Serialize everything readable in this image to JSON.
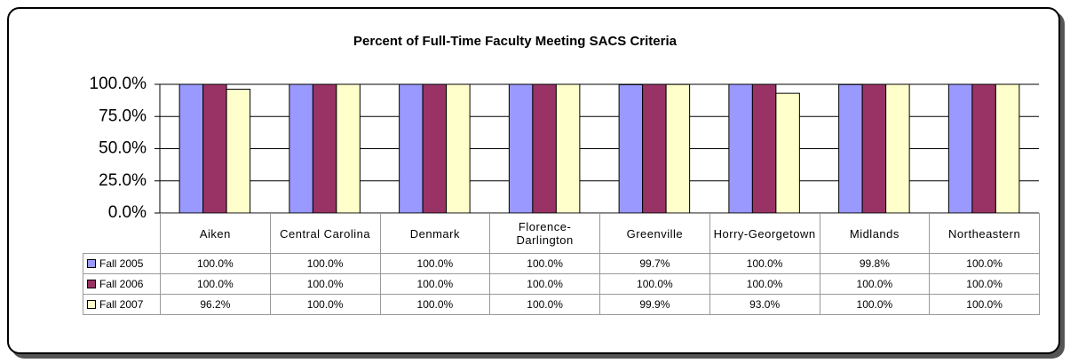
{
  "chart_data": {
    "type": "bar",
    "title": "Percent of Full-Time Faculty Meeting SACS Criteria",
    "categories": [
      "Aiken",
      "Central Carolina",
      "Denmark",
      "Florence-Darlington",
      "Greenville",
      "Horry-Georgetown",
      "Midlands",
      "Northeastern"
    ],
    "series": [
      {
        "name": "Fall 2005",
        "color": "#9999ff",
        "values": [
          100,
          100,
          100,
          100,
          99.7,
          100,
          99.8,
          100
        ],
        "value_labels": [
          "100.0%",
          "100.0%",
          "100.0%",
          "100.0%",
          "99.7%",
          "100.0%",
          "99.8%",
          "100.0%"
        ]
      },
      {
        "name": "Fall 2006",
        "color": "#993366",
        "values": [
          100,
          100,
          100,
          100,
          100,
          100,
          100,
          100
        ],
        "value_labels": [
          "100.0%",
          "100.0%",
          "100.0%",
          "100.0%",
          "100.0%",
          "100.0%",
          "100.0%",
          "100.0%"
        ]
      },
      {
        "name": "Fall 2007",
        "color": "#ffffcc",
        "values": [
          96.2,
          100,
          100,
          100,
          99.9,
          93.0,
          100,
          100
        ],
        "value_labels": [
          "96.2%",
          "100.0%",
          "100.0%",
          "100.0%",
          "99.9%",
          "93.0%",
          "100.0%",
          "100.0%"
        ]
      }
    ],
    "ylim": [
      0,
      100
    ],
    "yticks": [
      {
        "value": 0,
        "label": "0.0%"
      },
      {
        "value": 25,
        "label": "25.0%"
      },
      {
        "value": 50,
        "label": "50.0%"
      },
      {
        "value": 75,
        "label": "75.0%"
      },
      {
        "value": 100,
        "label": "100.0%"
      }
    ],
    "grid": true
  }
}
